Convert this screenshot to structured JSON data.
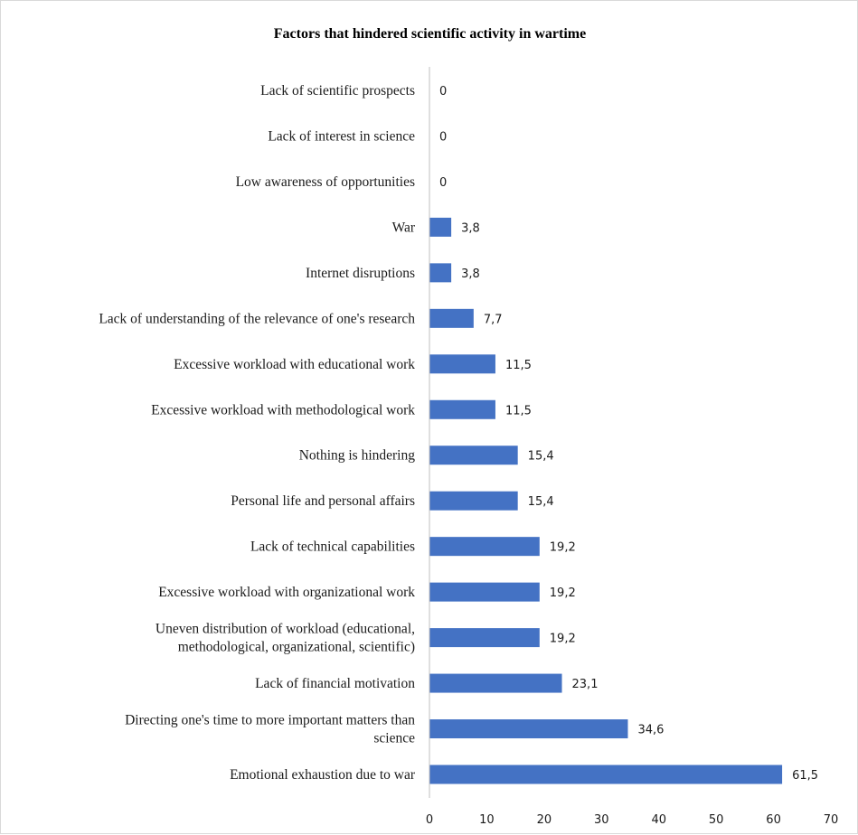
{
  "chart_data": {
    "type": "bar",
    "orientation": "horizontal",
    "title": "Factors that hindered scientific activity in wartime",
    "xlabel": "",
    "ylabel": "",
    "xlim": [
      0,
      70
    ],
    "x_ticks": [
      0,
      10,
      20,
      30,
      40,
      50,
      60,
      70
    ],
    "grid": false,
    "legend": "none",
    "bar_color": "#4472c4",
    "categories": [
      [
        "Lack of scientific prospects"
      ],
      [
        "Lack of interest in science"
      ],
      [
        "Low awareness of opportunities"
      ],
      [
        "War"
      ],
      [
        "Internet disruptions"
      ],
      [
        "Lack of understanding of the relevance of one's research"
      ],
      [
        "Excessive workload with educational work"
      ],
      [
        "Excessive workload with methodological work"
      ],
      [
        "Nothing is hindering"
      ],
      [
        "Personal life and personal affairs"
      ],
      [
        "Lack of technical capabilities"
      ],
      [
        "Excessive workload with organizational work"
      ],
      [
        "Uneven distribution of workload (educational,",
        "methodological, organizational, scientific)"
      ],
      [
        "Lack of financial motivation"
      ],
      [
        "Directing one's time to more important matters than",
        "science"
      ],
      [
        "Emotional exhaustion due to war"
      ]
    ],
    "values": [
      0,
      0,
      0,
      3.8,
      3.8,
      7.7,
      11.5,
      11.5,
      15.4,
      15.4,
      19.2,
      19.2,
      19.2,
      23.1,
      34.6,
      61.5
    ],
    "value_labels": [
      "0",
      "0",
      "0",
      "3,8",
      "3,8",
      "7,7",
      "11,5",
      "11,5",
      "15,4",
      "15,4",
      "19,2",
      "19,2",
      "19,2",
      "23,1",
      "34,6",
      "61,5"
    ]
  }
}
